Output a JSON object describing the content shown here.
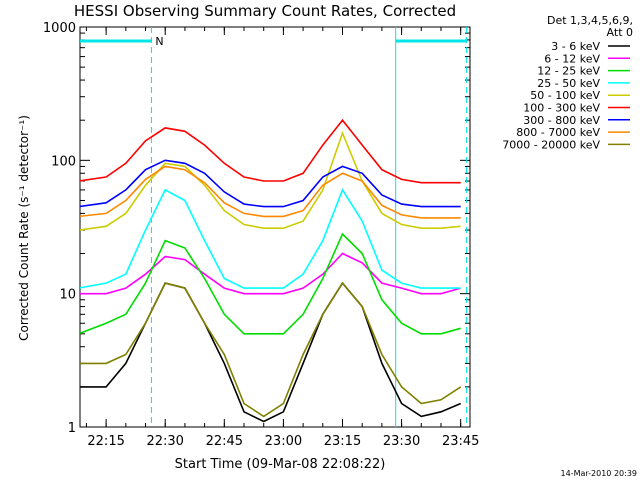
{
  "chart_data": {
    "type": "line",
    "title": "HESSI Observing Summary Count Rates, Corrected",
    "xlabel": "Start Time (09-Mar-08 22:08:22)",
    "ylabel": "Corrected Count Rate (s⁻¹ detector⁻¹)",
    "yscale": "log",
    "ylim": [
      1,
      1000
    ],
    "xlim": [
      "22:08:22",
      "23:47:22"
    ],
    "x_ticks": [
      "22:15",
      "22:30",
      "22:45",
      "23:00",
      "23:15",
      "23:30",
      "23:45"
    ],
    "y_ticks": [
      "1",
      "10",
      "100",
      "1000"
    ],
    "legend_header": [
      "Det 1,3,4,5,6,9,",
      "Att 0"
    ],
    "legend_position": "right",
    "timestamp": "14-Mar-2010 20:39",
    "markers": [
      {
        "type": "bar",
        "label": "",
        "start": "22:08:22",
        "end": "22:26:30",
        "color": "#00e5e5"
      },
      {
        "type": "bar_label",
        "text": "N",
        "at": "22:27:30",
        "color": "#00e5e5"
      },
      {
        "type": "bar",
        "label": "",
        "start": "23:28:30",
        "end": "23:46:30",
        "color": "#00e5e5"
      },
      {
        "type": "vline",
        "style": "dashed",
        "at": "22:26:30",
        "color": "#00e5e5"
      },
      {
        "type": "vline",
        "style": "solid",
        "at": "23:28:30",
        "color": "#00e5e5"
      },
      {
        "type": "vline",
        "style": "dashed",
        "at": "23:46:30",
        "color": "#00e5e5"
      }
    ],
    "x": [
      "22:08",
      "22:15",
      "22:20",
      "22:25",
      "22:30",
      "22:35",
      "22:40",
      "22:45",
      "22:50",
      "22:55",
      "23:00",
      "23:05",
      "23:10",
      "23:15",
      "23:20",
      "23:25",
      "23:30",
      "23:35",
      "23:40",
      "23:45"
    ],
    "series": [
      {
        "name": "3 - 6 keV",
        "color": "#000000",
        "values": [
          2,
          2,
          3,
          6,
          12,
          11,
          6,
          3,
          1.3,
          1.1,
          1.3,
          3,
          7,
          12,
          8,
          3,
          1.5,
          1.2,
          1.3,
          1.5
        ]
      },
      {
        "name": "6 - 12 keV",
        "color": "#ff00ff",
        "values": [
          10,
          10,
          11,
          14,
          19,
          18,
          14,
          11,
          10,
          10,
          10,
          11,
          14,
          20,
          17,
          12,
          11,
          10,
          10,
          11
        ]
      },
      {
        "name": "12 - 25 keV",
        "color": "#00dd00",
        "values": [
          5,
          6,
          7,
          12,
          25,
          22,
          13,
          7,
          5,
          5,
          5,
          7,
          13,
          28,
          20,
          9,
          6,
          5,
          5,
          5.5
        ]
      },
      {
        "name": "25 - 50 keV",
        "color": "#00ffff",
        "values": [
          11,
          12,
          14,
          30,
          60,
          50,
          25,
          13,
          11,
          11,
          11,
          14,
          25,
          60,
          35,
          15,
          12,
          11,
          11,
          11
        ]
      },
      {
        "name": "50 - 100 keV",
        "color": "#cccc00",
        "values": [
          30,
          32,
          40,
          65,
          95,
          90,
          65,
          42,
          33,
          31,
          31,
          35,
          60,
          160,
          70,
          40,
          33,
          31,
          31,
          32
        ]
      },
      {
        "name": "100 - 300 keV",
        "color": "#ff0000",
        "values": [
          70,
          75,
          95,
          140,
          175,
          165,
          130,
          95,
          75,
          70,
          70,
          80,
          130,
          200,
          130,
          85,
          72,
          68,
          68,
          68
        ]
      },
      {
        "name": "300 - 800 keV",
        "color": "#0000ff",
        "values": [
          45,
          48,
          60,
          85,
          100,
          95,
          80,
          58,
          47,
          45,
          45,
          50,
          75,
          90,
          80,
          55,
          47,
          45,
          45,
          45
        ]
      },
      {
        "name": "800 - 7000 keV",
        "color": "#ff8800",
        "values": [
          38,
          40,
          50,
          72,
          90,
          85,
          68,
          48,
          40,
          38,
          38,
          42,
          65,
          80,
          70,
          46,
          39,
          37,
          37,
          37
        ]
      },
      {
        "name": "7000 - 20000 keV",
        "color": "#808000",
        "values": [
          3,
          3,
          3.5,
          6,
          12,
          11,
          6,
          3.5,
          1.5,
          1.2,
          1.5,
          3.5,
          7,
          12,
          8,
          3.5,
          2,
          1.5,
          1.6,
          2
        ]
      }
    ]
  }
}
